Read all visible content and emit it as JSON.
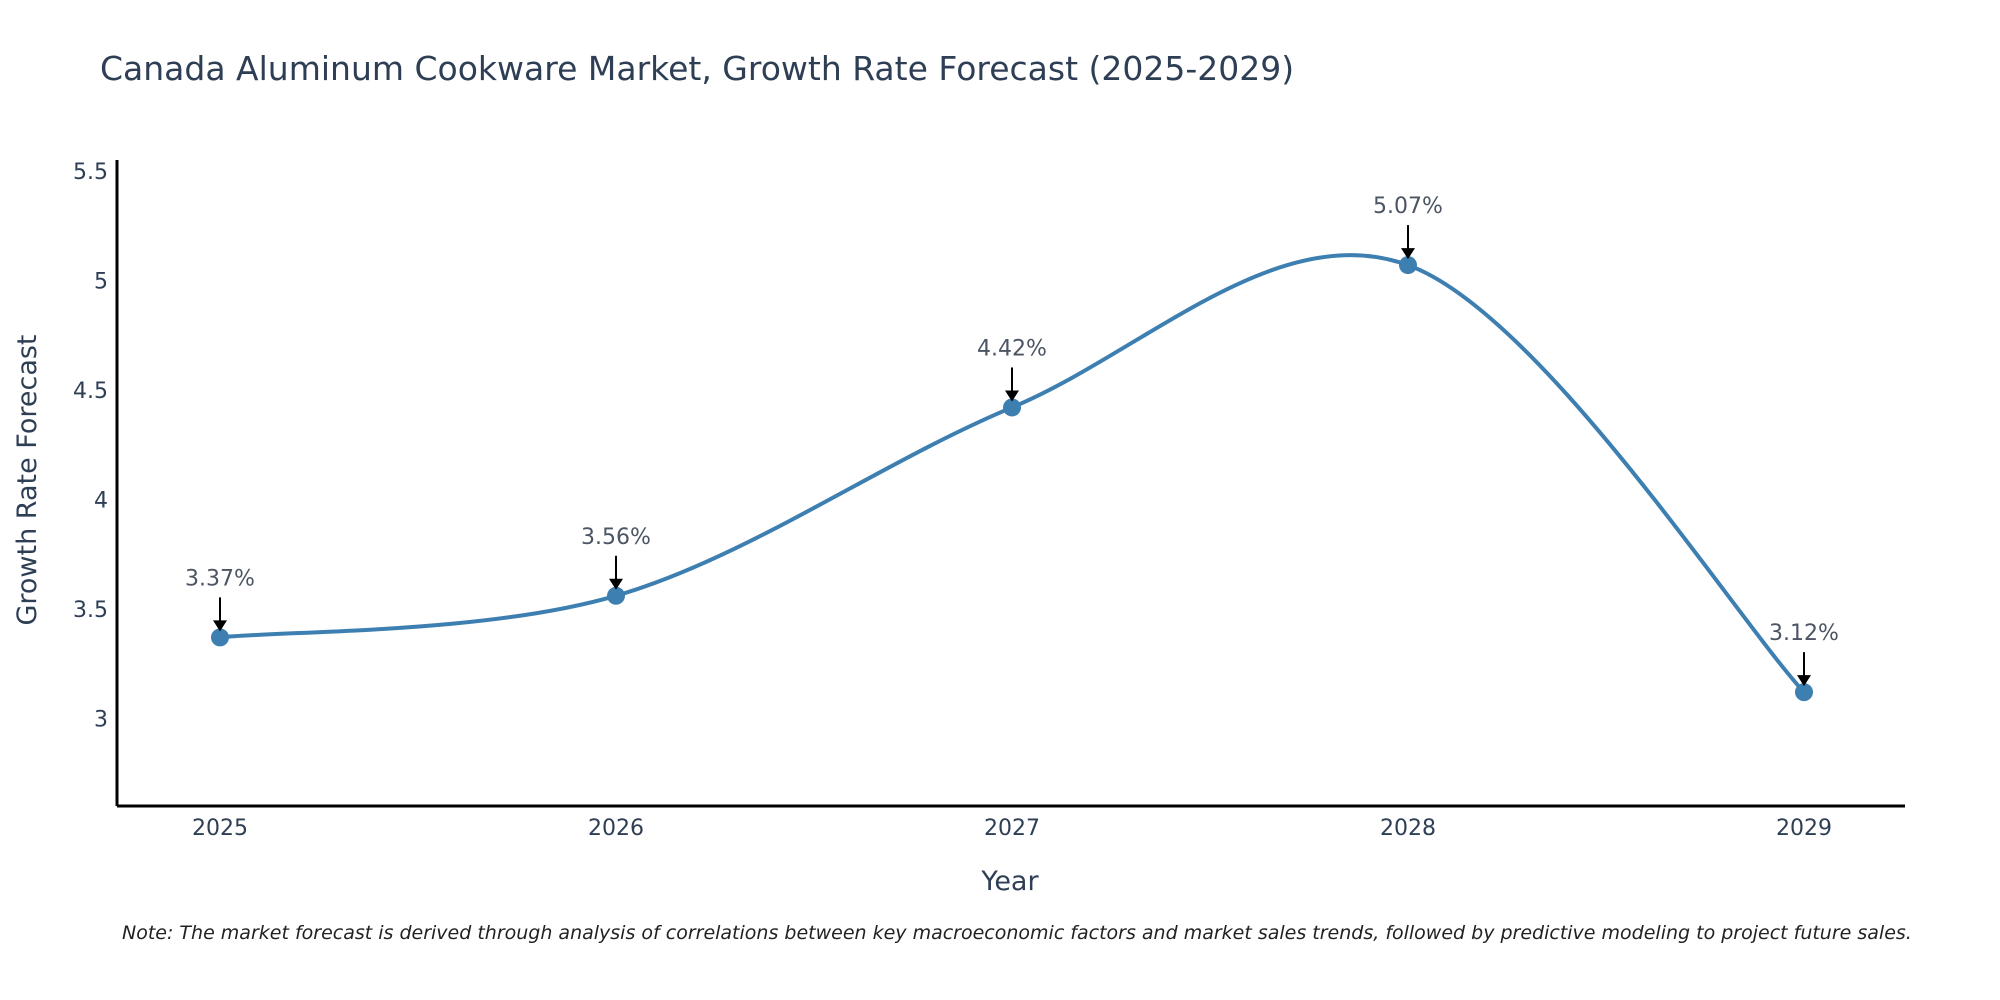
{
  "chart_data": {
    "type": "line",
    "title": "Canada Aluminum Cookware Market, Growth Rate Forecast (2025-2029)",
    "xlabel": "Year",
    "ylabel": "Growth Rate Forecast",
    "categories": [
      "2025",
      "2026",
      "2027",
      "2028",
      "2029"
    ],
    "series": [
      {
        "name": "Growth Rate Forecast",
        "values": [
          3.37,
          3.56,
          4.42,
          5.07,
          3.12
        ],
        "labels": [
          "3.37%",
          "3.56%",
          "4.42%",
          "5.07%",
          "3.12%"
        ]
      }
    ],
    "yticks": [
      3,
      3.5,
      4,
      4.5,
      5,
      5.5
    ],
    "ytick_labels": [
      "3",
      "3.5",
      "4",
      "4.5",
      "5",
      "5.5"
    ],
    "ylim": [
      2.6,
      5.55
    ],
    "grid": false,
    "legend": "none",
    "line_color": "#3d7fb1",
    "text_color": "#2e3f55",
    "annotation_color": "#000000"
  },
  "note": "Note: The market forecast is derived through analysis of correlations between key macroeconomic factors and market sales trends, followed by predictive modeling to project future sales."
}
